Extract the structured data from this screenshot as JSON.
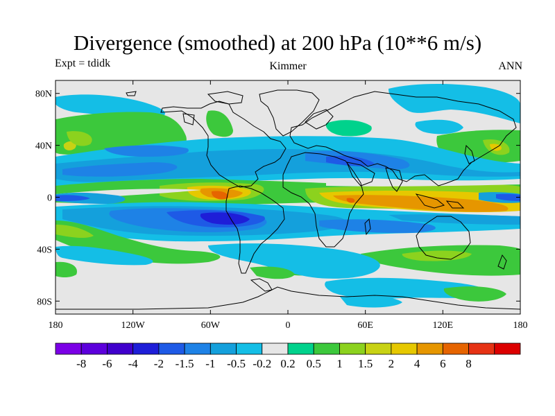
{
  "title": "Divergence (smoothed) at 200 hPa (10**6 m/s)",
  "subtitle_left": "Expt = tdidk",
  "subtitle_center": "Kimmer",
  "subtitle_right": "ANN",
  "map": {
    "projection": "cylindrical equidistant",
    "lon_range": [
      -180,
      180
    ],
    "lat_range": [
      -90,
      90
    ],
    "lat_ticks": [
      {
        "value": 80,
        "label": "80N"
      },
      {
        "value": 40,
        "label": "40N"
      },
      {
        "value": 0,
        "label": "0"
      },
      {
        "value": -40,
        "label": "40S"
      },
      {
        "value": -80,
        "label": "80S"
      }
    ],
    "lon_ticks": [
      {
        "value": -180,
        "label": "180"
      },
      {
        "value": -120,
        "label": "120W"
      },
      {
        "value": -60,
        "label": "60W"
      },
      {
        "value": 0,
        "label": "0"
      },
      {
        "value": 60,
        "label": "60E"
      },
      {
        "value": 120,
        "label": "120E"
      },
      {
        "value": 180,
        "label": "180"
      }
    ],
    "colors": {
      "background": "#e6e6e6",
      "coast": "#000000"
    }
  },
  "colorbar": {
    "colors": [
      "#7b00e6",
      "#5c00dc",
      "#4000cc",
      "#1e1ed8",
      "#1e5ae6",
      "#1e82e6",
      "#14a0dc",
      "#14bee6",
      "#e6e6e6",
      "#00d28c",
      "#3cc83c",
      "#8cd21e",
      "#c8d214",
      "#e6c800",
      "#e69600",
      "#e66400",
      "#e63214",
      "#dc0000"
    ],
    "labels": [
      "-8",
      "-6",
      "-4",
      "-2",
      "-1.5",
      "-1",
      "-0.5",
      "-0.2",
      "0.2",
      "0.5",
      "1",
      "1.5",
      "2",
      "4",
      "6",
      "8"
    ]
  }
}
